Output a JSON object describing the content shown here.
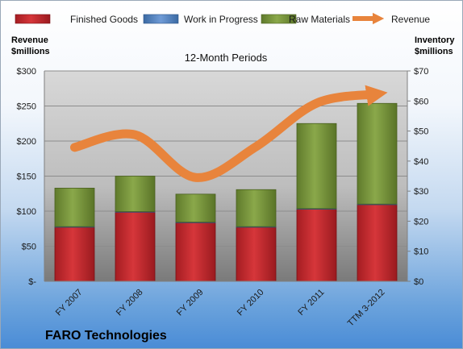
{
  "chart_data": {
    "type": "bar",
    "stacked": true,
    "subtitle": "12-Month Periods",
    "company": "FARO Technologies",
    "categories": [
      "FY 2007",
      "FY 2008",
      "FY 2009",
      "FY 2010",
      "FY 2011",
      "TTM 3-2012"
    ],
    "series": [
      {
        "name": "Finished Goods",
        "axis": "right",
        "color": "#c0272d",
        "values": [
          18.0,
          23.0,
          19.5,
          18.0,
          24.0,
          25.5
        ]
      },
      {
        "name": "Work in Progress",
        "axis": "right",
        "color": "#4f81bd",
        "values": [
          0.2,
          0.2,
          0.2,
          0.2,
          0.2,
          0.2
        ]
      },
      {
        "name": "Raw Materials",
        "axis": "right",
        "color": "#77933c",
        "values": [
          12.8,
          11.8,
          9.3,
          12.3,
          28.3,
          33.5
        ]
      },
      {
        "name": "Revenue",
        "axis": "left",
        "type": "line",
        "color": "#e8843c",
        "values": [
          191,
          209,
          148,
          192,
          254,
          267
        ]
      }
    ],
    "y_left": {
      "label_line1": "Revenue",
      "label_line2": "$millions",
      "lim": [
        0,
        300
      ],
      "ticks": [
        0,
        50,
        100,
        150,
        200,
        250,
        300
      ],
      "tick_labels": [
        "$-",
        "$50",
        "$100",
        "$150",
        "$200",
        "$250",
        "$300"
      ]
    },
    "y_right": {
      "label_line1": "Inventory",
      "label_line2": "$millions",
      "lim": [
        0,
        70
      ],
      "ticks": [
        0,
        10,
        20,
        30,
        40,
        50,
        60,
        70
      ],
      "tick_labels": [
        "$0",
        "$10",
        "$20",
        "$30",
        "$40",
        "$50",
        "$60",
        "$70"
      ]
    },
    "grid": true,
    "legend_position": "top"
  }
}
